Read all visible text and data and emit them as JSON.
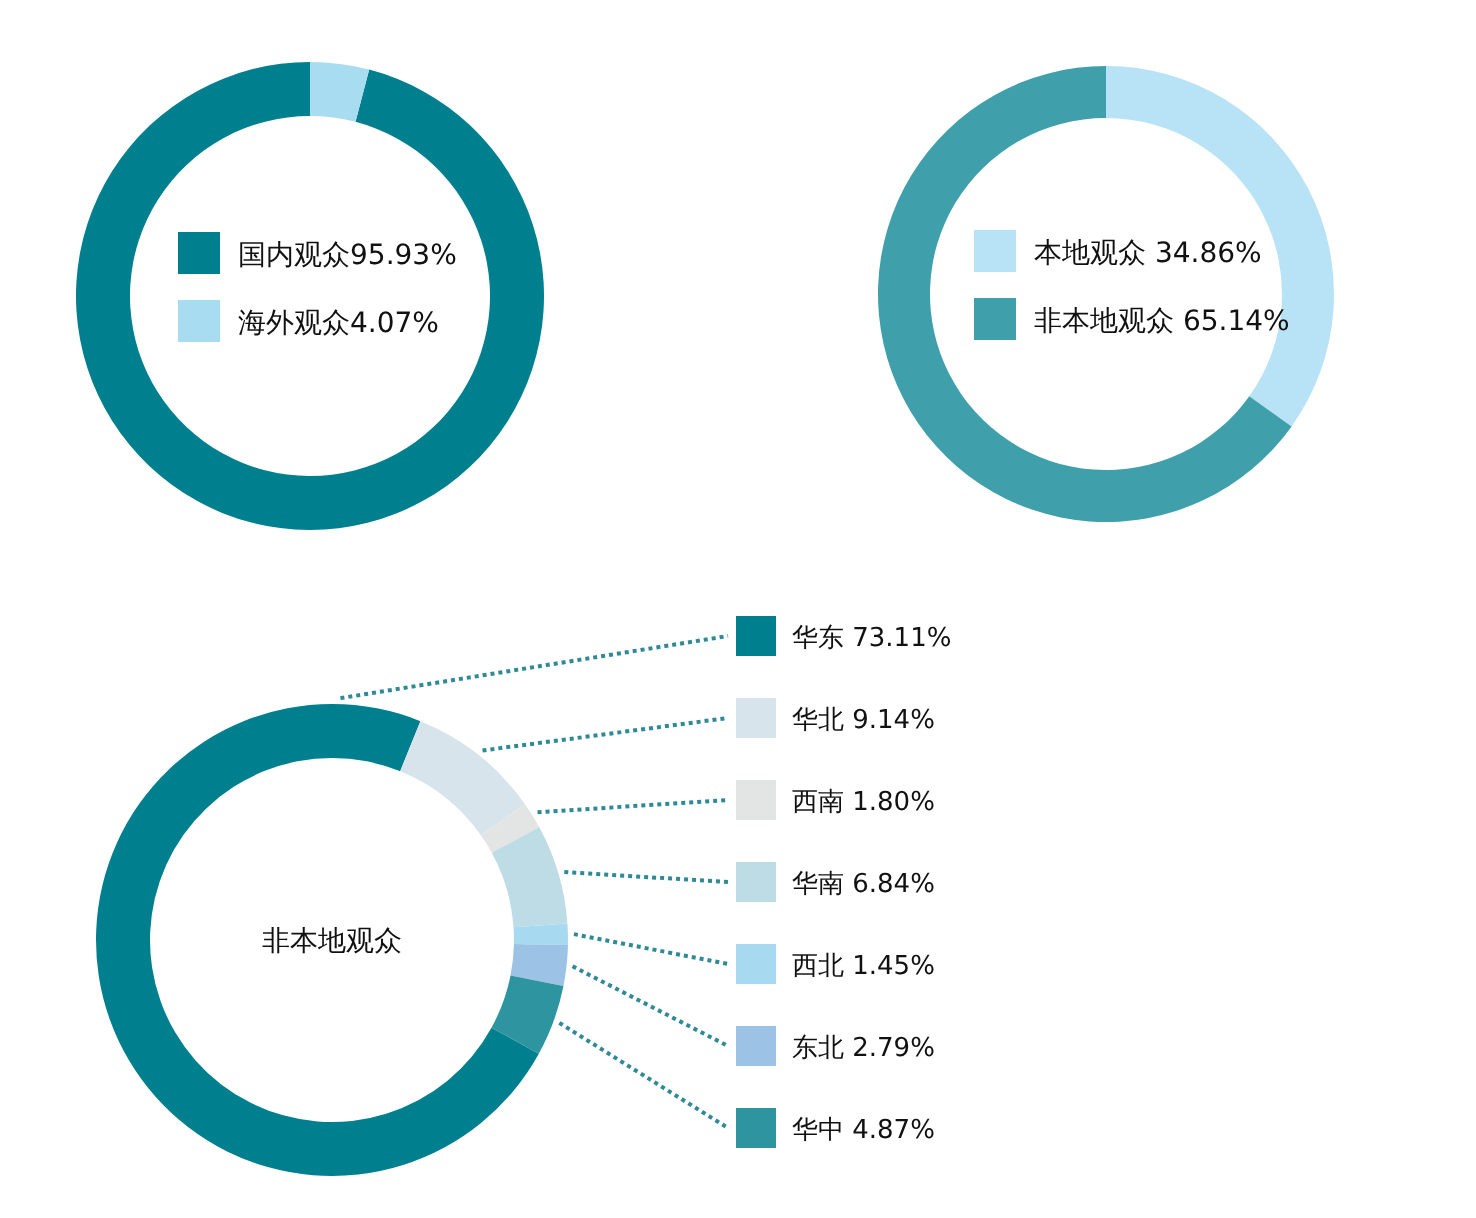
{
  "chart_data": [
    {
      "type": "donut",
      "categories": [
        "国内观众",
        "海外观众"
      ],
      "values": [
        95.93,
        4.07
      ],
      "value_labels": [
        "95.93%",
        "4.07%"
      ],
      "colors": [
        "#00808f",
        "#a8dcf0"
      ],
      "legend": "center"
    },
    {
      "type": "donut",
      "categories": [
        "本地观众",
        "非本地观众"
      ],
      "values": [
        34.86,
        65.14
      ],
      "value_labels": [
        "34.86%",
        "65.14%"
      ],
      "colors": [
        "#b8e2f5",
        "#3fa0ab"
      ],
      "legend": "center"
    },
    {
      "type": "donut",
      "categories": [
        "华东",
        "华北",
        "西南",
        "华南",
        "西北",
        "东北",
        "华中"
      ],
      "values": [
        73.11,
        9.14,
        1.8,
        6.84,
        1.45,
        2.79,
        4.87
      ],
      "value_labels": [
        "73.11%",
        "9.14%",
        "1.80%",
        "6.84%",
        "1.45%",
        "2.79%",
        "4.87%"
      ],
      "colors": [
        "#007f8f",
        "#d7e4ec",
        "#e3e5e5",
        "#bedce6",
        "#a7daf0",
        "#9cc3e6",
        "#2e949f"
      ],
      "legend": "right",
      "annotations": [
        "非本地观众"
      ]
    }
  ]
}
